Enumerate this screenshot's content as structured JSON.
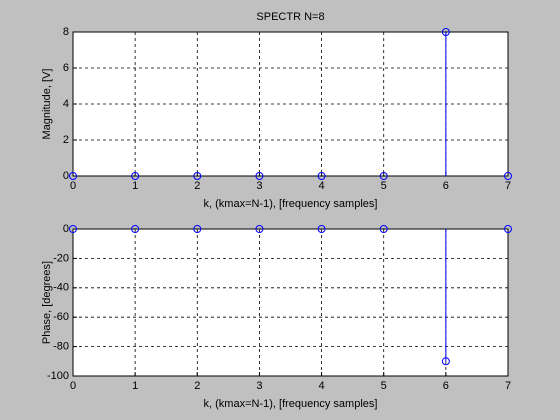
{
  "chart_data": [
    {
      "type": "stem",
      "title": "SPECTR N=8",
      "xlabel": "k, (kmax=N-1), [frequency samples]",
      "ylabel": "Magnitude, [V]",
      "x": [
        0,
        1,
        2,
        3,
        4,
        5,
        6,
        7
      ],
      "values": [
        0,
        0,
        0,
        0,
        0,
        0,
        8,
        0
      ],
      "color": "#0000ff",
      "xlim": [
        0,
        7
      ],
      "ylim": [
        0,
        8
      ],
      "xticks": [
        0,
        1,
        2,
        3,
        4,
        5,
        6,
        7
      ],
      "yticks": [
        0,
        2,
        4,
        6,
        8
      ],
      "grid": true
    },
    {
      "type": "stem",
      "xlabel": "k, (kmax=N-1), [frequency samples]",
      "ylabel": "Phase, [degrees]",
      "x": [
        0,
        1,
        2,
        3,
        4,
        5,
        6,
        7
      ],
      "values": [
        0,
        0,
        0,
        0,
        0,
        0,
        -90,
        0
      ],
      "color": "#0000ff",
      "xlim": [
        0,
        7
      ],
      "ylim": [
        -100,
        0
      ],
      "xticks": [
        0,
        1,
        2,
        3,
        4,
        5,
        6,
        7
      ],
      "yticks": [
        -100,
        -80,
        -60,
        -40,
        -20,
        0
      ],
      "grid": true
    }
  ]
}
